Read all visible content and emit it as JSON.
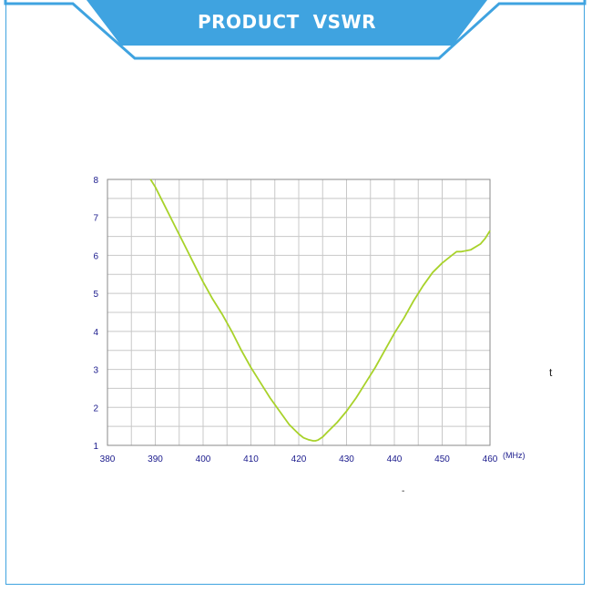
{
  "header": {
    "title": "PRODUCT  VSWR"
  },
  "colors": {
    "header_fill": "#3fa3e0",
    "header_border": "#3fa3e0",
    "curve": "#a8d22a",
    "tick_text": "#1a1a8c",
    "grid": "#c8c8c8"
  },
  "stray_marks": {
    "t": "t",
    "dash": "-"
  },
  "chart_data": {
    "type": "line",
    "title": "",
    "xlabel": "",
    "ylabel": "",
    "x_unit_label": "(MHz)",
    "xlim": [
      380,
      460
    ],
    "ylim": [
      1,
      8
    ],
    "x_ticks": [
      380,
      390,
      400,
      410,
      420,
      430,
      440,
      450,
      460
    ],
    "y_ticks": [
      1,
      2,
      3,
      4,
      5,
      6,
      7,
      8
    ],
    "grid": true,
    "series": [
      {
        "x": [
          389,
          390,
          392,
          394,
          396,
          398,
          400,
          402,
          404,
          406,
          408,
          410,
          412,
          414,
          416,
          418,
          420,
          421,
          422,
          423,
          423.5,
          424,
          425,
          426,
          428,
          430,
          432,
          434,
          436,
          438,
          440,
          442,
          444,
          446,
          448,
          450,
          451,
          452,
          453,
          454,
          456,
          458,
          459,
          460
        ],
        "y": [
          8.0,
          7.8,
          7.3,
          6.8,
          6.3,
          5.8,
          5.3,
          4.85,
          4.45,
          4.0,
          3.5,
          3.05,
          2.65,
          2.25,
          1.9,
          1.55,
          1.3,
          1.2,
          1.15,
          1.12,
          1.12,
          1.14,
          1.22,
          1.35,
          1.6,
          1.9,
          2.25,
          2.65,
          3.05,
          3.5,
          3.95,
          4.35,
          4.8,
          5.2,
          5.55,
          5.8,
          5.9,
          6.0,
          6.1,
          6.1,
          6.15,
          6.3,
          6.45,
          6.65
        ]
      }
    ]
  }
}
